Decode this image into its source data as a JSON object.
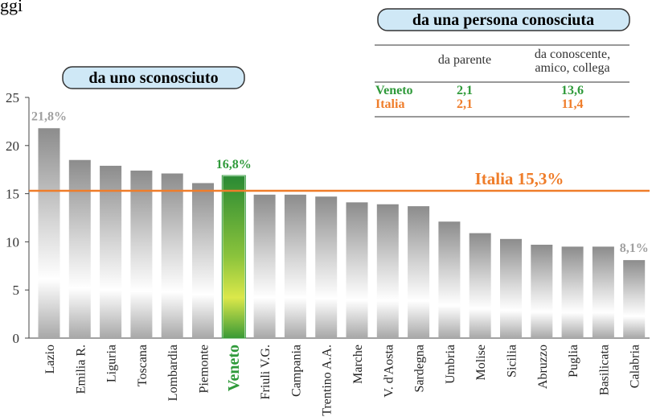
{
  "chart_data": {
    "type": "bar",
    "title": "ggi",
    "subtitle": "da uno sconosciuto",
    "categories": [
      "Lazio",
      "Emilia R.",
      "Liguria",
      "Toscana",
      "Lombardia",
      "Piemonte",
      "Veneto",
      "Friuli V.G.",
      "Campania",
      "Trentino A.A.",
      "Marche",
      "V. d'Aosta",
      "Sardegna",
      "Umbria",
      "Molise",
      "Sicilia",
      "Abruzzo",
      "Puglia",
      "Basilicata",
      "Calabria"
    ],
    "values": [
      21.8,
      18.5,
      17.9,
      17.4,
      17.1,
      16.1,
      16.8,
      14.9,
      14.9,
      14.7,
      14.1,
      13.9,
      13.7,
      12.1,
      10.9,
      10.3,
      9.7,
      9.5,
      9.5,
      8.1
    ],
    "value_labels": [
      "21,8%",
      null,
      null,
      null,
      null,
      null,
      "16,8%",
      null,
      null,
      null,
      null,
      null,
      null,
      null,
      null,
      null,
      null,
      null,
      null,
      "8,1%"
    ],
    "color": "#9a9a9a",
    "highlight": "Veneto",
    "highlight_color": "#2f9a3a",
    "reference_line": {
      "value": 15.3,
      "label": "Italia 15,3%",
      "color": "#ef7d2a"
    },
    "ylim": [
      0,
      25
    ],
    "yticks": [
      0,
      5,
      10,
      15,
      20,
      25
    ]
  },
  "table": {
    "title": "da una persona conosciuta",
    "columns": [
      "da parente",
      "da conoscente, amico, collega"
    ],
    "rows": [
      {
        "name": "Veneto",
        "color": "#2f9a3a",
        "cells": [
          "2,1",
          "13,6"
        ]
      },
      {
        "name": "Italia",
        "color": "#ef7d2a",
        "cells": [
          "2,1",
          "11,4"
        ]
      }
    ]
  }
}
